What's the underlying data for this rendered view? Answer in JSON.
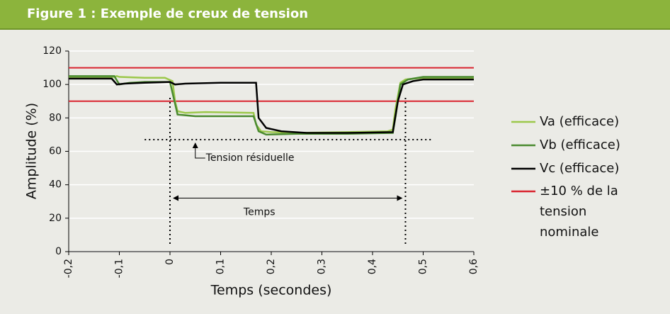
{
  "chart_data": {
    "type": "line",
    "title": "Figure 1 : Exemple de creux de tension",
    "xlabel": "Temps (secondes)",
    "ylabel": "Amplitude (%)",
    "xlim": [
      -0.2,
      0.6
    ],
    "ylim": [
      0,
      120
    ],
    "xticks": [
      {
        "value": -0.2,
        "label": "-0,2"
      },
      {
        "value": -0.1,
        "label": "-0,1"
      },
      0,
      {
        "value": 0.1,
        "label": "0,1"
      },
      {
        "value": 0.2,
        "label": "0,2"
      },
      {
        "value": 0.3,
        "label": "0,3"
      },
      {
        "value": 0.4,
        "label": "0,4"
      },
      {
        "value": 0.5,
        "label": "0,5"
      },
      {
        "value": 0.6,
        "label": "0,6"
      }
    ],
    "yticks": [
      0,
      20,
      40,
      60,
      80,
      100,
      120
    ],
    "grid": true,
    "series": [
      {
        "name": "Va (efficace)",
        "color": "#9cc84b",
        "x": [
          -0.2,
          -0.11,
          -0.105,
          -0.1,
          -0.05,
          -0.01,
          0.005,
          0.01,
          0.015,
          0.03,
          0.07,
          0.165,
          0.17,
          0.18,
          0.2,
          0.25,
          0.35,
          0.43,
          0.44,
          0.445,
          0.455,
          0.465,
          0.5,
          0.6
        ],
        "values": [
          104.5,
          104.5,
          105,
          104.5,
          104,
          104,
          102,
          90,
          84,
          83,
          83.5,
          83,
          76,
          72,
          71.5,
          71,
          71.5,
          72,
          73,
          85,
          101,
          103,
          104,
          104
        ]
      },
      {
        "name": "Vb (efficace)",
        "color": "#4a8a2f",
        "x": [
          -0.2,
          -0.11,
          -0.1,
          -0.08,
          -0.05,
          0,
          0.005,
          0.015,
          0.05,
          0.165,
          0.175,
          0.19,
          0.25,
          0.35,
          0.44,
          0.445,
          0.455,
          0.47,
          0.5,
          0.6
        ],
        "values": [
          105,
          105,
          100,
          101,
          101.5,
          101.5,
          95,
          82,
          81,
          81,
          72,
          70,
          70.5,
          70.5,
          71,
          80,
          100,
          103,
          104.5,
          104.5
        ]
      },
      {
        "name": "Vc (efficace)",
        "color": "#000000",
        "x": [
          -0.2,
          -0.115,
          -0.105,
          -0.09,
          -0.05,
          0,
          0.01,
          0.03,
          0.1,
          0.17,
          0.175,
          0.19,
          0.22,
          0.27,
          0.35,
          0.44,
          0.45,
          0.46,
          0.48,
          0.5,
          0.6
        ],
        "values": [
          103.5,
          103.5,
          100,
          100.5,
          101,
          101.5,
          100,
          100.5,
          101,
          101,
          80,
          74,
          72,
          71,
          71,
          71.5,
          90,
          100,
          102,
          103,
          103
        ]
      }
    ],
    "reference_lines": {
      "name": "±10 % de la tension nominale",
      "color": "#d9232e",
      "values": [
        110,
        90
      ]
    },
    "annotations": [
      {
        "text": "Tension résiduelle",
        "y": 67,
        "x": [
          -0.05,
          0.52
        ]
      },
      {
        "text": "Temps",
        "x": [
          0,
          0.465
        ]
      }
    ]
  }
}
